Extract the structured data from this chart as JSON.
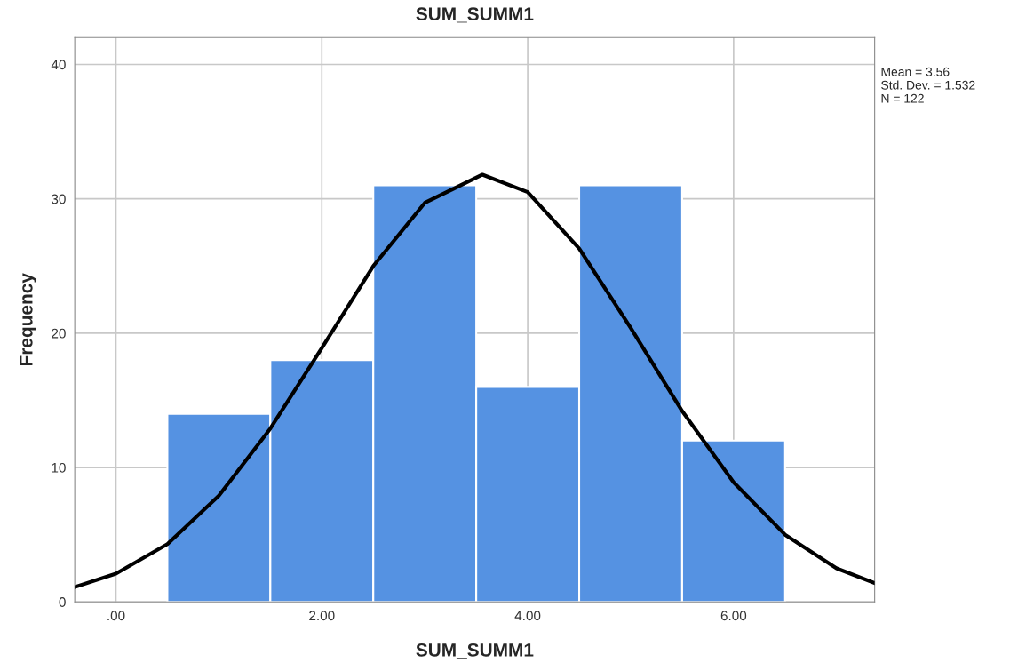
{
  "chart_data": {
    "type": "histogram",
    "title": "SUM_SUMM1",
    "xlabel": "SUM_SUMM1",
    "ylabel": "Frequency",
    "bins": [
      0.5,
      1.5,
      2.5,
      3.5,
      4.5,
      5.5,
      6.5
    ],
    "values": [
      14,
      18,
      31,
      16,
      31,
      12
    ],
    "color": "#5592e2",
    "series": [
      {
        "type": "line",
        "color": "#000000",
        "x": [
          -0.4,
          0,
          0.5,
          1,
          1.5,
          2,
          2.5,
          3,
          3.56,
          4,
          4.5,
          5,
          5.5,
          6,
          6.5,
          7,
          7.37
        ],
        "values": [
          1.1,
          2.1,
          4.3,
          7.9,
          12.9,
          18.9,
          25.0,
          29.7,
          31.8,
          30.5,
          26.3,
          20.4,
          14.2,
          8.9,
          5.0,
          2.5,
          1.4
        ]
      }
    ],
    "xlim": [
      -0.4,
      7.37
    ],
    "ylim": [
      0,
      42
    ],
    "xticks": [
      {
        "value": 0,
        "label": ".00"
      },
      {
        "value": 2,
        "label": "2.00"
      },
      {
        "value": 4,
        "label": "4.00"
      },
      {
        "value": 6,
        "label": "6.00"
      }
    ],
    "yticks": [
      0,
      10,
      20,
      30,
      40
    ],
    "grid": true,
    "annotations": [
      "Mean = 3.56\nStd. Dev. = 1.532\nN = 122"
    ]
  }
}
